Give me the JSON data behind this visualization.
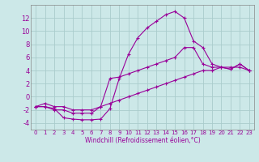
{
  "xlabel": "Windchill (Refroidissement éolien,°C)",
  "bg_color": "#cce8e8",
  "grid_color": "#aacccc",
  "line_color": "#990099",
  "xlim": [
    -0.5,
    23.5
  ],
  "ylim": [
    -5,
    14
  ],
  "xticks": [
    0,
    1,
    2,
    3,
    4,
    5,
    6,
    7,
    8,
    9,
    10,
    11,
    12,
    13,
    14,
    15,
    16,
    17,
    18,
    19,
    20,
    21,
    22,
    23
  ],
  "yticks": [
    -4,
    -2,
    0,
    2,
    4,
    6,
    8,
    10,
    12
  ],
  "line1_x": [
    0,
    1,
    2,
    3,
    4,
    5,
    6,
    7,
    8,
    9,
    10,
    11,
    12,
    13,
    14,
    15,
    16,
    17,
    18,
    19,
    20,
    21,
    22,
    23
  ],
  "line1_y": [
    -1.5,
    -1.5,
    -1.8,
    -3.2,
    -3.4,
    -3.5,
    -3.5,
    -3.4,
    -1.8,
    2.8,
    6.5,
    9.0,
    10.5,
    11.5,
    12.5,
    13.0,
    12.0,
    8.5,
    7.5,
    5.0,
    4.5,
    4.2,
    5.0,
    4.0
  ],
  "line2_x": [
    0,
    1,
    2,
    3,
    4,
    5,
    6,
    7,
    8,
    9,
    10,
    11,
    12,
    13,
    14,
    15,
    16,
    17,
    18,
    19,
    20,
    21,
    22,
    23
  ],
  "line2_y": [
    -1.5,
    -1.5,
    -2.0,
    -2.0,
    -2.5,
    -2.5,
    -2.5,
    -1.5,
    2.8,
    3.0,
    3.5,
    4.0,
    4.5,
    5.0,
    5.5,
    6.0,
    7.5,
    7.5,
    5.0,
    4.5,
    4.5,
    4.2,
    5.0,
    4.0
  ],
  "line3_x": [
    0,
    1,
    2,
    3,
    4,
    5,
    6,
    7,
    8,
    9,
    10,
    11,
    12,
    13,
    14,
    15,
    16,
    17,
    18,
    19,
    20,
    21,
    22,
    23
  ],
  "line3_y": [
    -1.5,
    -1.0,
    -1.5,
    -1.5,
    -2.0,
    -2.0,
    -2.0,
    -1.5,
    -1.0,
    -0.5,
    0.0,
    0.5,
    1.0,
    1.5,
    2.0,
    2.5,
    3.0,
    3.5,
    4.0,
    4.0,
    4.5,
    4.5,
    4.5,
    4.0
  ],
  "xlabel_fontsize": 5.5,
  "tick_fontsize_x": 5.0,
  "tick_fontsize_y": 6.0,
  "linewidth": 0.8,
  "markersize": 3.0
}
